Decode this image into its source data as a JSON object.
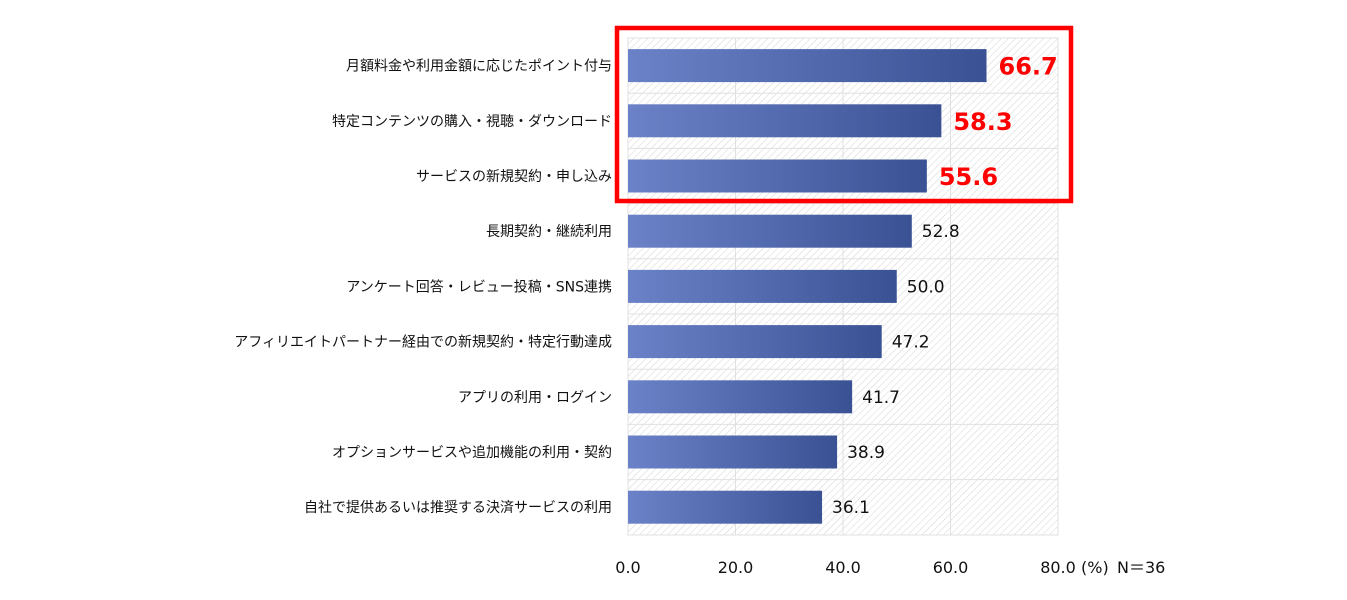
{
  "chart_data": {
    "type": "bar",
    "orientation": "horizontal",
    "categories": [
      "月額料金や利用金額に応じたポイント付与",
      "特定コンテンツの購入・視聴・ダウンロード",
      "サービスの新規契約・申し込み",
      "長期契約・継続利用",
      "アンケート回答・レビュー投稿・SNS連携",
      "アフィリエイトパートナー経由での新規契約・特定行動達成",
      "アプリの利用・ログイン",
      "オプションサービスや追加機能の利用・契約",
      "自社で提供あるいは推奨する決済サービスの利用"
    ],
    "values": [
      66.7,
      58.3,
      55.6,
      52.8,
      50.0,
      47.2,
      41.7,
      38.9,
      36.1
    ],
    "value_labels": [
      "66.7",
      "58.3",
      "55.6",
      "52.8",
      "50.0",
      "47.2",
      "41.7",
      "38.9",
      "36.1"
    ],
    "highlighted_count": 3,
    "xlim": [
      0,
      80
    ],
    "x_ticks": [
      0,
      20,
      40,
      60,
      80
    ],
    "x_tick_labels": [
      "0.0",
      "20.0",
      "40.0",
      "60.0",
      "80.0"
    ],
    "unit_label": "(%)",
    "sample_size_label": "N＝36",
    "grid": true,
    "colors": {
      "bar_start": "#6c82c8",
      "bar_end": "#3a5294",
      "highlight": "#ff0000",
      "hatch": "#d9d9d9"
    }
  }
}
